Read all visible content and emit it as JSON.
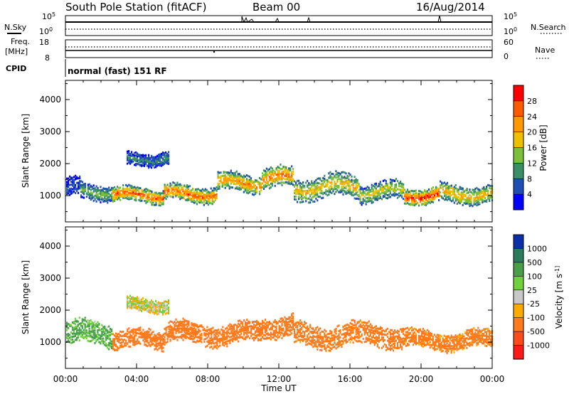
{
  "header": {
    "station_line": "South Pole Station (fitACF)",
    "beam": "Beam 00",
    "date": "16/Aug/2014"
  },
  "top_panels": {
    "n_sky_label": "N.Sky",
    "n_search_label": "N.Search",
    "n_top_left": "10^5",
    "n_bottom_left": "10^0",
    "n_top_right": "10^5",
    "n_bottom_right": "10^0",
    "freq_label_line1": "Freq.",
    "freq_label_line2": "[MHz]",
    "freq_top": "18",
    "freq_bottom": "8",
    "nave_label": "Nave",
    "nave_top": "60",
    "nave_bottom": "0",
    "cpid_label": "CPID",
    "cpid_text": "normal (fast) 151 RF"
  },
  "colors": {
    "power": [
      "#0000ff",
      "#1f4fb4",
      "#3b8f66",
      "#7cbf3a",
      "#f0c000",
      "#ff9900",
      "#ff5a00",
      "#ff0000"
    ],
    "velocity": [
      "#0a2fa8",
      "#2c7a5c",
      "#4aa04a",
      "#6fd23c",
      "#c8c8c8",
      "#ffaa00",
      "#ff7a1a",
      "#ff4a1a",
      "#ff1a1a"
    ],
    "ground_scatter": "#c0c0c0"
  },
  "chart_data": [
    {
      "type": "heatmap",
      "title": "",
      "xlabel": "Time UT",
      "ylabel": "Slant Range [km]",
      "x_ticks": [
        "00:00",
        "04:00",
        "08:00",
        "12:00",
        "16:00",
        "20:00",
        "00:00"
      ],
      "y_ticks": [
        "1000",
        "2000",
        "3000",
        "4000"
      ],
      "xlim": [
        0,
        24
      ],
      "ylim": [
        180,
        4600
      ],
      "colorbar": {
        "label": "Power [dB]",
        "ticks": [
          "4",
          "8",
          "12",
          "16",
          "20",
          "24",
          "28"
        ],
        "range": [
          0,
          32
        ]
      },
      "scatter_regions": [
        {
          "t_start": 0.0,
          "t_end": 0.8,
          "range_center": 1250,
          "range_width": 500,
          "value": 6
        },
        {
          "t_start": 0.8,
          "t_end": 2.6,
          "range_center": 1120,
          "range_width": 420,
          "value": 14
        },
        {
          "t_start": 2.6,
          "t_end": 5.5,
          "range_center": 1000,
          "range_width": 380,
          "value": 28
        },
        {
          "t_start": 3.4,
          "t_end": 5.8,
          "range_center": 2150,
          "range_width": 350,
          "value": 10
        },
        {
          "t_start": 5.5,
          "t_end": 8.5,
          "range_center": 1050,
          "range_width": 420,
          "value": 27
        },
        {
          "t_start": 8.5,
          "t_end": 11.0,
          "range_center": 1380,
          "range_width": 480,
          "value": 24
        },
        {
          "t_start": 11.0,
          "t_end": 12.8,
          "range_center": 1500,
          "range_width": 550,
          "value": 26
        },
        {
          "t_start": 12.8,
          "t_end": 16.5,
          "range_center": 1250,
          "range_width": 600,
          "value": 20
        },
        {
          "t_start": 16.5,
          "t_end": 19.0,
          "range_center": 1100,
          "range_width": 500,
          "value": 18
        },
        {
          "t_start": 19.0,
          "t_end": 21.0,
          "range_center": 1000,
          "range_width": 420,
          "value": 30
        },
        {
          "t_start": 21.0,
          "t_end": 24.0,
          "range_center": 1050,
          "range_width": 480,
          "value": 22
        }
      ]
    },
    {
      "type": "heatmap",
      "title": "",
      "xlabel": "Time UT",
      "ylabel": "Slant Range [km]",
      "x_ticks": [
        "00:00",
        "04:00",
        "08:00",
        "12:00",
        "16:00",
        "20:00",
        "00:00"
      ],
      "y_ticks": [
        "1000",
        "2000",
        "3000",
        "4000"
      ],
      "xlim": [
        0,
        24
      ],
      "ylim": [
        180,
        4600
      ],
      "colorbar": {
        "label": "Velocity [m s^-1]",
        "ticks": [
          "1000",
          "500",
          "100",
          "25",
          "-25",
          "-100",
          "-500",
          "-1000"
        ]
      },
      "scatter_regions": [
        {
          "t_start": 0.0,
          "t_end": 2.6,
          "range_center": 1250,
          "range_width": 600,
          "value": 150
        },
        {
          "t_start": 2.6,
          "t_end": 5.5,
          "range_center": 1050,
          "range_width": 500,
          "value": -300
        },
        {
          "t_start": 3.4,
          "t_end": 5.8,
          "range_center": 2150,
          "range_width": 350,
          "value": 0
        },
        {
          "t_start": 5.5,
          "t_end": 11.0,
          "range_center": 1250,
          "range_width": 560,
          "value": -300
        },
        {
          "t_start": 11.0,
          "t_end": 12.8,
          "range_center": 1500,
          "range_width": 550,
          "value": -350
        },
        {
          "t_start": 12.8,
          "t_end": 19.0,
          "range_center": 1200,
          "range_width": 600,
          "value": -250
        },
        {
          "t_start": 19.0,
          "t_end": 24.0,
          "range_center": 1050,
          "range_width": 480,
          "value": -200
        }
      ]
    }
  ]
}
